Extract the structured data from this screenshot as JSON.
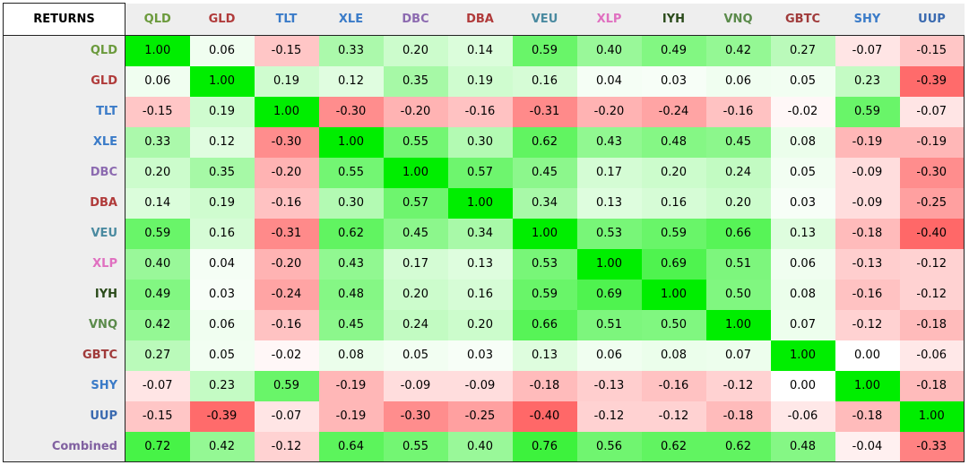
{
  "chart_data": {
    "type": "heatmap",
    "corner_label": "RETURNS",
    "columns": [
      "QLD",
      "GLD",
      "TLT",
      "XLE",
      "DBC",
      "DBA",
      "VEU",
      "XLP",
      "IYH",
      "VNQ",
      "GBTC",
      "SHY",
      "UUP"
    ],
    "rows": [
      "QLD",
      "GLD",
      "TLT",
      "XLE",
      "DBC",
      "DBA",
      "VEU",
      "XLP",
      "IYH",
      "VNQ",
      "GBTC",
      "SHY",
      "UUP",
      "Combined"
    ],
    "values": [
      [
        1.0,
        0.06,
        -0.15,
        0.33,
        0.2,
        0.14,
        0.59,
        0.4,
        0.49,
        0.42,
        0.27,
        -0.07,
        -0.15
      ],
      [
        0.06,
        1.0,
        0.19,
        0.12,
        0.35,
        0.19,
        0.16,
        0.04,
        0.03,
        0.06,
        0.05,
        0.23,
        -0.39
      ],
      [
        -0.15,
        0.19,
        1.0,
        -0.3,
        -0.2,
        -0.16,
        -0.31,
        -0.2,
        -0.24,
        -0.16,
        -0.02,
        0.59,
        -0.07
      ],
      [
        0.33,
        0.12,
        -0.3,
        1.0,
        0.55,
        0.3,
        0.62,
        0.43,
        0.48,
        0.45,
        0.08,
        -0.19,
        -0.19
      ],
      [
        0.2,
        0.35,
        -0.2,
        0.55,
        1.0,
        0.57,
        0.45,
        0.17,
        0.2,
        0.24,
        0.05,
        -0.09,
        -0.3
      ],
      [
        0.14,
        0.19,
        -0.16,
        0.3,
        0.57,
        1.0,
        0.34,
        0.13,
        0.16,
        0.2,
        0.03,
        -0.09,
        -0.25
      ],
      [
        0.59,
        0.16,
        -0.31,
        0.62,
        0.45,
        0.34,
        1.0,
        0.53,
        0.59,
        0.66,
        0.13,
        -0.18,
        -0.4
      ],
      [
        0.4,
        0.04,
        -0.2,
        0.43,
        0.17,
        0.13,
        0.53,
        1.0,
        0.69,
        0.51,
        0.06,
        -0.13,
        -0.12
      ],
      [
        0.49,
        0.03,
        -0.24,
        0.48,
        0.2,
        0.16,
        0.59,
        0.69,
        1.0,
        0.5,
        0.08,
        -0.16,
        -0.12
      ],
      [
        0.42,
        0.06,
        -0.16,
        0.45,
        0.24,
        0.2,
        0.66,
        0.51,
        0.5,
        1.0,
        0.07,
        -0.12,
        -0.18
      ],
      [
        0.27,
        0.05,
        -0.02,
        0.08,
        0.05,
        0.03,
        0.13,
        0.06,
        0.08,
        0.07,
        1.0,
        0.0,
        -0.06
      ],
      [
        -0.07,
        0.23,
        0.59,
        -0.19,
        -0.09,
        -0.09,
        -0.18,
        -0.13,
        -0.16,
        -0.12,
        0.0,
        1.0,
        -0.18
      ],
      [
        -0.15,
        -0.39,
        -0.07,
        -0.19,
        -0.3,
        -0.25,
        -0.4,
        -0.12,
        -0.12,
        -0.18,
        -0.06,
        -0.18,
        1.0
      ],
      [
        0.72,
        0.42,
        -0.12,
        0.64,
        0.55,
        0.4,
        0.76,
        0.56,
        0.62,
        0.62,
        0.48,
        -0.04,
        -0.33
      ]
    ],
    "label_colors": {
      "QLD": "#6b9a3c",
      "GLD": "#b03a3a",
      "TLT": "#3a7bc8",
      "XLE": "#3a7bc8",
      "DBC": "#8c6ab0",
      "DBA": "#b03a3a",
      "VEU": "#4a8aa0",
      "XLP": "#e070c0",
      "IYH": "#2a4a1a",
      "VNQ": "#5a8a4a",
      "GBTC": "#a03a3a",
      "SHY": "#3a7bc8",
      "UUP": "#3a6ab0",
      "Combined": "#8060a0"
    },
    "color_scale": {
      "positive_max": "#00ee00",
      "negative_max": "#ff6060",
      "neutral": "#ffffff"
    }
  }
}
